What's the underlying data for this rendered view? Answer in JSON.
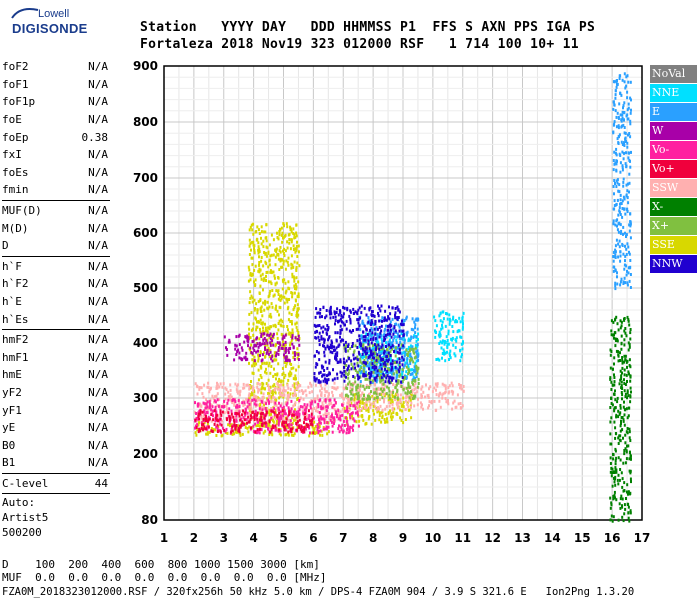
{
  "logo": {
    "top": "Lowell",
    "bottom": "DIGISONDE"
  },
  "header": {
    "line1": "Station   YYYY DAY   DDD HHMMSS P1  FFS S AXN PPS IGA PS",
    "line2": "Fortaleza 2018 Nov19 323 012000 RSF   1 714 100 10+ 11"
  },
  "params": {
    "group1": [
      {
        "name": "foF2",
        "value": "N/A"
      },
      {
        "name": "foF1",
        "value": "N/A"
      },
      {
        "name": "foF1p",
        "value": "N/A"
      },
      {
        "name": "foE",
        "value": "N/A"
      },
      {
        "name": "foEp",
        "value": "0.38"
      },
      {
        "name": "fxI",
        "value": "N/A"
      },
      {
        "name": "foEs",
        "value": "N/A"
      },
      {
        "name": "fmin",
        "value": "N/A"
      }
    ],
    "group2": [
      {
        "name": "MUF(D)",
        "value": "N/A"
      },
      {
        "name": "M(D)",
        "value": "N/A"
      },
      {
        "name": "D",
        "value": "N/A"
      }
    ],
    "group3": [
      {
        "name": "h`F",
        "value": "N/A"
      },
      {
        "name": "h`F2",
        "value": "N/A"
      },
      {
        "name": "h`E",
        "value": "N/A"
      },
      {
        "name": "h`Es",
        "value": "N/A"
      }
    ],
    "group4": [
      {
        "name": "hmF2",
        "value": "N/A"
      },
      {
        "name": "hmF1",
        "value": "N/A"
      },
      {
        "name": "hmE",
        "value": "N/A"
      },
      {
        "name": "yF2",
        "value": "N/A"
      },
      {
        "name": "yF1",
        "value": "N/A"
      },
      {
        "name": "yE",
        "value": "N/A"
      },
      {
        "name": "B0",
        "value": "N/A"
      },
      {
        "name": "B1",
        "value": "N/A"
      }
    ],
    "clevel": {
      "name": "C-level",
      "value": "44"
    },
    "auto": [
      "Auto:",
      "Artist5",
      "500200"
    ]
  },
  "legend": [
    {
      "label": "NoVal",
      "color": "#808080"
    },
    {
      "label": "NNE",
      "color": "#00e0ff"
    },
    {
      "label": "E",
      "color": "#2aa0ff"
    },
    {
      "label": "W",
      "color": "#a800a8"
    },
    {
      "label": "Vo-",
      "color": "#ff20a0"
    },
    {
      "label": "Vo+",
      "color": "#f0003c"
    },
    {
      "label": "SSW",
      "color": "#ffb0b0"
    },
    {
      "label": "X-",
      "color": "#008000"
    },
    {
      "label": "X+",
      "color": "#80c040"
    },
    {
      "label": "SSE",
      "color": "#d8d800"
    },
    {
      "label": "NNW",
      "color": "#2000d0"
    }
  ],
  "bottom": {
    "line1": "D    100  200  400  600  800 1000 1500 3000 [km]",
    "line2": "MUF  0.0  0.0  0.0  0.0  0.0  0.0  0.0  0.0 [MHz]",
    "line3": "FZA0M_2018323012000.RSF / 320fx256h 50 kHz 5.0 km / DPS-4 FZA0M 904 / 3.9 S 321.6 E   Ion2Png 1.3.20"
  },
  "chart_data": {
    "type": "scatter",
    "title": "",
    "xlabel": "",
    "ylabel": "",
    "xlim": [
      1,
      17
    ],
    "ylim": [
      80,
      900
    ],
    "x_ticks": [
      1,
      2,
      3,
      4,
      5,
      6,
      7,
      8,
      9,
      10,
      11,
      12,
      13,
      14,
      15,
      16,
      17
    ],
    "y_ticks": [
      80,
      200,
      300,
      400,
      500,
      600,
      700,
      800,
      900
    ],
    "y_scale": "log-like (virtual height)",
    "grid": true,
    "clusters": [
      {
        "series": "SSE",
        "x": [
          2.0,
          6.5
        ],
        "y": [
          235,
          260
        ]
      },
      {
        "series": "SSE",
        "x": [
          3.8,
          5.5
        ],
        "y": [
          250,
          620
        ]
      },
      {
        "series": "SSE",
        "x": [
          7.0,
          9.3
        ],
        "y": [
          255,
          310
        ]
      },
      {
        "series": "SSW",
        "x": [
          2.0,
          7.0
        ],
        "y": [
          260,
          330
        ]
      },
      {
        "series": "SSW",
        "x": [
          7.0,
          11.0
        ],
        "y": [
          280,
          330
        ]
      },
      {
        "series": "W",
        "x": [
          3.0,
          5.5
        ],
        "y": [
          370,
          420
        ]
      },
      {
        "series": "Vo-",
        "x": [
          2.0,
          7.5
        ],
        "y": [
          240,
          300
        ]
      },
      {
        "series": "NNE",
        "x": [
          7.5,
          9.5
        ],
        "y": [
          340,
          420
        ]
      },
      {
        "series": "NNE",
        "x": [
          10.0,
          11.0
        ],
        "y": [
          370,
          460
        ]
      },
      {
        "series": "E",
        "x": [
          7.5,
          9.5
        ],
        "y": [
          330,
          450
        ]
      },
      {
        "series": "X+",
        "x": [
          7.0,
          9.5
        ],
        "y": [
          300,
          400
        ]
      },
      {
        "series": "Vo+",
        "x": [
          2.0,
          6.0
        ],
        "y": [
          240,
          280
        ]
      },
      {
        "series": "NNW",
        "x": [
          6.0,
          9.0
        ],
        "y": [
          330,
          470
        ]
      },
      {
        "series": "X-",
        "x": [
          15.9,
          16.6
        ],
        "y": [
          80,
          450
        ]
      },
      {
        "series": "E",
        "x": [
          16.0,
          16.6
        ],
        "y": [
          500,
          890
        ]
      }
    ]
  }
}
